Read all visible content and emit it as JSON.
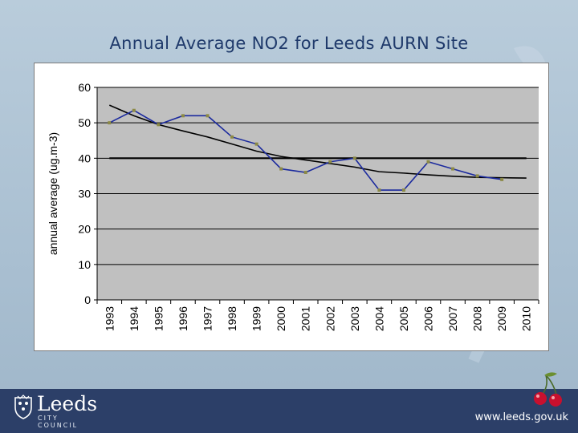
{
  "slide": {
    "title": "Annual Average NO2 for Leeds AURN Site"
  },
  "footer": {
    "logo_name": "Leeds",
    "logo_sub": "CITY COUNCIL",
    "url": "www.leeds.gov.uk"
  },
  "icons": {
    "logo": "leeds-crest-icon",
    "decoration": "cherries-icon"
  },
  "colors": {
    "series_line": "#1b2a9e",
    "marker": "#8c8a46",
    "trend_line": "#000000",
    "limit_line": "#000000",
    "plot_bg": "#c0c0c0",
    "footer_bg": "#2c3f68",
    "title": "#1f3a6b"
  },
  "chart_data": {
    "type": "line",
    "title": "",
    "xlabel": "",
    "ylabel": "annual average (ug.m-3)",
    "categories": [
      "1993",
      "1994",
      "1995",
      "1996",
      "1997",
      "1998",
      "1999",
      "2000",
      "2001",
      "2002",
      "2003",
      "2004",
      "2005",
      "2006",
      "2007",
      "2008",
      "2009",
      "2010"
    ],
    "yticks": [
      "0",
      "10",
      "20",
      "30",
      "40",
      "50",
      "60"
    ],
    "ylim": [
      0,
      60
    ],
    "grid": true,
    "legend": "none",
    "series": [
      {
        "values": [
          50,
          53.5,
          49.5,
          52,
          52,
          46,
          44,
          37,
          36,
          39,
          40,
          31,
          31,
          39,
          37,
          35,
          34,
          null
        ]
      },
      {
        "values": [
          55,
          52,
          49.5,
          47.7,
          46,
          44,
          42,
          40.5,
          39.5,
          38.5,
          37.5,
          36.2,
          35.8,
          35.3,
          34.9,
          34.6,
          34.5,
          34.4
        ]
      }
    ],
    "reference_lines": [
      40
    ]
  }
}
